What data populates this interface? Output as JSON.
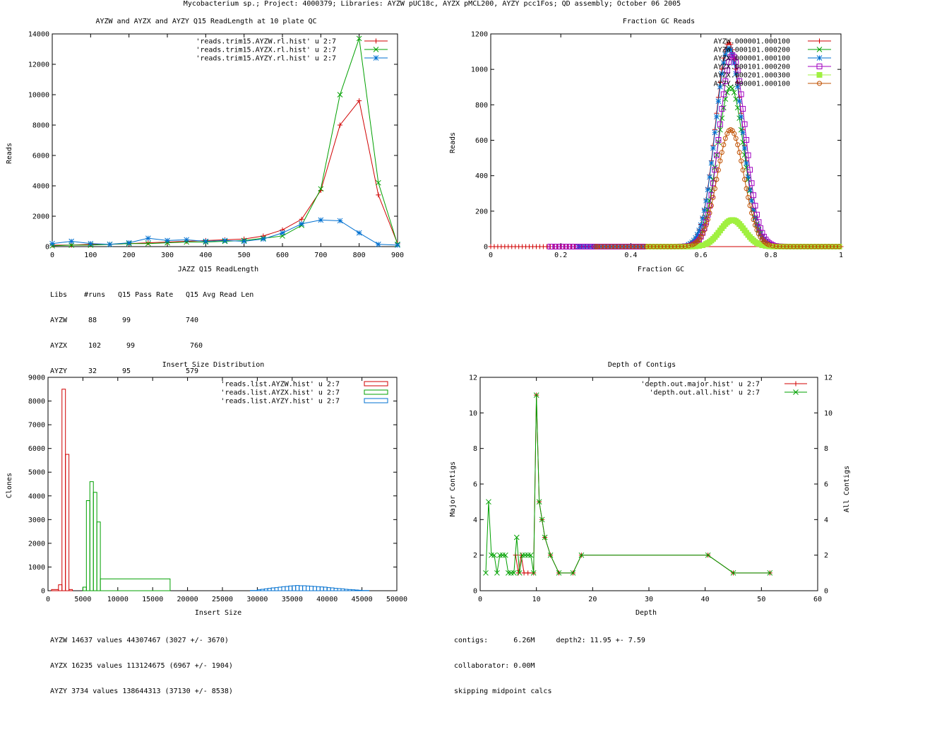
{
  "page_title": "Mycobacterium sp.; Project: 4000379; Libraries: AYZW pUC18c, AYZX pMCL200, AYZY pcc1Fos; QD assembly; October 06 2005",
  "colors": {
    "red": "#d00000",
    "green": "#00a000",
    "blue": "#0070d0",
    "purple": "#a000c0",
    "lime": "#a0f040",
    "brown": "#c05000"
  },
  "read_length": {
    "title": "AYZW and AYZX and AYZY Q15 ReadLength at 10 plate QC",
    "xlabel": "JAZZ Q15 ReadLength",
    "ylabel": "Reads",
    "xticks": [
      "0",
      "100",
      "200",
      "300",
      "400",
      "500",
      "600",
      "700",
      "800",
      "900"
    ],
    "yticks": [
      "0",
      "2000",
      "4000",
      "6000",
      "8000",
      "10000",
      "12000",
      "14000"
    ],
    "legend": [
      "'reads.trim15.AYZW.rl.hist' u 2:7",
      "'reads.trim15.AYZX.rl.hist' u 2:7",
      "'reads.trim15.AYZY.rl.hist' u 2:7"
    ],
    "stats": {
      "header": [
        "Libs",
        "#runs",
        "Q15 Pass Rate",
        "Q15 Avg Read Len"
      ],
      "rows": [
        [
          "AYZW",
          "88",
          "99",
          "740"
        ],
        [
          "AYZX",
          "102",
          "99",
          "760"
        ],
        [
          "AYZY",
          "32",
          "95",
          "579"
        ]
      ]
    }
  },
  "gc": {
    "title": "Fraction GC Reads",
    "xlabel": "Fraction GC",
    "ylabel": "Reads",
    "xticks": [
      "0",
      "0.2",
      "0.4",
      "0.6",
      "0.8",
      "1"
    ],
    "yticks": [
      "0",
      "200",
      "400",
      "600",
      "800",
      "1000",
      "1200"
    ],
    "legend": [
      "AYZW.000001.000100",
      "AYZW.000101.000200",
      "AYZX.000001.000100",
      "AYZX.000101.000200",
      "AYZX.000201.000300",
      "AYZY.000001.000100"
    ]
  },
  "insert": {
    "title": "Insert Size Distribution",
    "xlabel": "Insert Size",
    "ylabel": "Clones",
    "xticks": [
      "0",
      "5000",
      "10000",
      "15000",
      "20000",
      "25000",
      "30000",
      "35000",
      "40000",
      "45000",
      "50000"
    ],
    "yticks": [
      "0",
      "1000",
      "2000",
      "3000",
      "4000",
      "5000",
      "6000",
      "7000",
      "8000",
      "9000"
    ],
    "legend": [
      "'reads.list.AYZW.hist' u 2:7",
      "'reads.list.AYZX.hist' u 2:7",
      "'reads.list.AYZY.hist' u 2:7"
    ],
    "stats": [
      "AYZW 14637 values 44307467 (3027 +/- 3670)",
      "AYZX 16235 values 113124675 (6967 +/- 1904)",
      "AYZY 3734 values 138644313 (37130 +/- 8538)"
    ]
  },
  "depth": {
    "title": "Depth of Contigs",
    "xlabel": "Depth",
    "ylabel": "Major Contigs",
    "y2label": "All Contigs",
    "xticks": [
      "0",
      "10",
      "20",
      "30",
      "40",
      "50",
      "60"
    ],
    "yticks": [
      "0",
      "2",
      "4",
      "6",
      "8",
      "10",
      "12"
    ],
    "legend": [
      "'depth.out.major.hist' u 2:7",
      "'depth.out.all.hist' u 2:7"
    ],
    "stats": [
      "contigs:      6.26M     depth2: 11.95 +- 7.59",
      "collaborator: 0.00M",
      "skipping midpoint calcs"
    ]
  },
  "chart_data": [
    {
      "type": "line",
      "title": "AYZW and AYZX and AYZY Q15 ReadLength at 10 plate QC",
      "xlabel": "JAZZ Q15 ReadLength",
      "ylabel": "Reads",
      "xlim": [
        0,
        900
      ],
      "ylim": [
        0,
        14000
      ],
      "series": [
        {
          "name": "'reads.trim15.AYZW.rl.hist' u 2:7",
          "color": "#d00000",
          "marker": "plus",
          "x": [
            0,
            50,
            100,
            150,
            200,
            250,
            300,
            350,
            400,
            450,
            500,
            550,
            600,
            650,
            700,
            750,
            800,
            850,
            900
          ],
          "y": [
            100,
            100,
            150,
            150,
            200,
            250,
            300,
            350,
            400,
            450,
            500,
            700,
            1100,
            1800,
            3700,
            8000,
            9600,
            3400,
            200
          ]
        },
        {
          "name": "'reads.trim15.AYZX.rl.hist' u 2:7",
          "color": "#00a000",
          "marker": "x",
          "x": [
            0,
            50,
            100,
            150,
            200,
            250,
            300,
            350,
            400,
            450,
            500,
            550,
            600,
            650,
            700,
            750,
            800,
            850,
            900
          ],
          "y": [
            50,
            100,
            100,
            150,
            200,
            200,
            250,
            300,
            300,
            350,
            400,
            550,
            700,
            1400,
            3800,
            10000,
            13700,
            4200,
            150
          ]
        },
        {
          "name": "'reads.trim15.AYZY.rl.hist' u 2:7",
          "color": "#0070d0",
          "marker": "star",
          "x": [
            0,
            50,
            100,
            150,
            200,
            250,
            300,
            350,
            400,
            450,
            500,
            550,
            600,
            650,
            700,
            750,
            800,
            850,
            900
          ],
          "y": [
            200,
            350,
            200,
            150,
            250,
            550,
            400,
            450,
            350,
            400,
            350,
            500,
            900,
            1500,
            1750,
            1700,
            900,
            150,
            100
          ]
        }
      ]
    },
    {
      "type": "line",
      "title": "Fraction GC Reads",
      "xlabel": "Fraction GC",
      "ylabel": "Reads",
      "xlim": [
        0,
        1
      ],
      "ylim": [
        0,
        1200
      ],
      "series": [
        {
          "name": "AYZW.000001.000100",
          "color": "#d00000",
          "marker": "plus",
          "peak": 0.68,
          "sigma": 0.038,
          "height": 1150,
          "start": 0
        },
        {
          "name": "AYZW.000101.000200",
          "color": "#00a000",
          "marker": "x",
          "peak": 0.685,
          "sigma": 0.038,
          "height": 900,
          "start": 0.3
        },
        {
          "name": "AYZX.000001.000100",
          "color": "#0070d0",
          "marker": "star",
          "peak": 0.68,
          "sigma": 0.038,
          "height": 1120,
          "start": 0.25
        },
        {
          "name": "AYZX.000101.000200",
          "color": "#a000c0",
          "marker": "square",
          "peak": 0.69,
          "sigma": 0.037,
          "height": 1080,
          "start": 0.17
        },
        {
          "name": "AYZX.000201.000300",
          "color": "#a0f040",
          "marker": "filled-square",
          "peak": 0.69,
          "sigma": 0.035,
          "height": 150,
          "start": 0.45
        },
        {
          "name": "AYZY.000001.000100",
          "color": "#c05000",
          "marker": "circle",
          "peak": 0.685,
          "sigma": 0.038,
          "height": 660,
          "start": 0.3
        }
      ]
    },
    {
      "type": "bar",
      "title": "Insert Size Distribution",
      "xlabel": "Insert Size",
      "ylabel": "Clones",
      "xlim": [
        0,
        50000
      ],
      "ylim": [
        0,
        9000
      ],
      "series": [
        {
          "name": "'reads.list.AYZW.hist' u 2:7",
          "color": "#d00000",
          "bins": [
            [
              500,
              1500,
              50
            ],
            [
              1500,
              2000,
              250
            ],
            [
              2000,
              2500,
              8500
            ],
            [
              2500,
              3000,
              5750
            ],
            [
              3000,
              3500,
              50
            ]
          ]
        },
        {
          "name": "'reads.list.AYZX.hist' u 2:7",
          "color": "#00a000",
          "bins": [
            [
              5000,
              5500,
              150
            ],
            [
              5500,
              6000,
              3800
            ],
            [
              6000,
              6500,
              4600
            ],
            [
              6500,
              7000,
              4150
            ],
            [
              7000,
              7500,
              2900
            ],
            [
              7500,
              17500,
              500
            ]
          ]
        },
        {
          "name": "'reads.list.AYZY.hist' u 2:7",
          "color": "#0070d0",
          "bins": [
            [
              29000,
              30000,
              10
            ],
            [
              30000,
              30500,
              40
            ],
            [
              30500,
              31000,
              60
            ],
            [
              31000,
              31500,
              80
            ],
            [
              31500,
              32000,
              100
            ],
            [
              32000,
              32500,
              120
            ],
            [
              32500,
              33000,
              130
            ],
            [
              33000,
              33500,
              150
            ],
            [
              33500,
              34000,
              170
            ],
            [
              34000,
              34500,
              180
            ],
            [
              34500,
              35000,
              200
            ],
            [
              35000,
              35500,
              210
            ],
            [
              35500,
              36000,
              220
            ],
            [
              36000,
              36500,
              210
            ],
            [
              36500,
              37000,
              210
            ],
            [
              37000,
              37500,
              200
            ],
            [
              37500,
              38000,
              190
            ],
            [
              38000,
              38500,
              180
            ],
            [
              38500,
              39000,
              170
            ],
            [
              39000,
              39500,
              160
            ],
            [
              39500,
              40000,
              150
            ],
            [
              40000,
              40500,
              130
            ],
            [
              40500,
              41000,
              120
            ],
            [
              41000,
              41500,
              100
            ],
            [
              41500,
              42000,
              90
            ],
            [
              42000,
              42500,
              80
            ],
            [
              42500,
              43000,
              60
            ],
            [
              43000,
              43500,
              50
            ],
            [
              43500,
              44000,
              40
            ],
            [
              44000,
              44500,
              30
            ],
            [
              44500,
              45000,
              20
            ],
            [
              45000,
              46000,
              10
            ]
          ]
        }
      ]
    },
    {
      "type": "line",
      "title": "Depth of Contigs",
      "xlabel": "Depth",
      "ylabel": "Major Contigs",
      "y2label": "All Contigs",
      "xlim": [
        0,
        60
      ],
      "ylim": [
        0,
        12
      ],
      "series": [
        {
          "name": "'depth.out.major.hist' u 2:7",
          "color": "#d00000",
          "marker": "plus",
          "x": [
            6.3,
            6.8,
            7.3,
            7.8,
            8.5,
            9.5,
            10,
            10.5,
            11,
            11.5,
            12.5,
            14,
            16.5,
            18,
            40.5,
            45,
            51.5
          ],
          "y": [
            2,
            1,
            2,
            1,
            1,
            1,
            11,
            5,
            4,
            3,
            2,
            1,
            1,
            2,
            2,
            1,
            1
          ]
        },
        {
          "name": "'depth.out.all.hist' u 2:7",
          "color": "#00a000",
          "marker": "x",
          "x": [
            1,
            1.5,
            2,
            2.5,
            3,
            3.5,
            4,
            4.5,
            5,
            5.5,
            6,
            6.5,
            7,
            7.5,
            8,
            8.5,
            9,
            9.5,
            10,
            10.5,
            11,
            11.5,
            12.5,
            14,
            16.5,
            18,
            40.5,
            45,
            51.5
          ],
          "y": [
            1,
            5,
            2,
            2,
            1,
            2,
            2,
            2,
            1,
            1,
            1,
            3,
            1,
            2,
            2,
            2,
            2,
            1,
            11,
            5,
            4,
            3,
            2,
            1,
            1,
            2,
            2,
            1,
            1
          ]
        }
      ]
    }
  ]
}
